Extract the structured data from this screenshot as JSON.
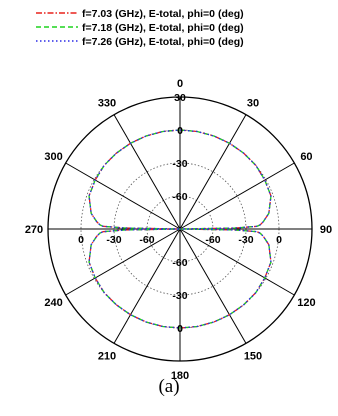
{
  "chart_data": {
    "type": "polar-line",
    "angle_unit": "deg",
    "angle_zero": "top",
    "angle_direction": "clockwise",
    "angle_ticks": [
      0,
      30,
      60,
      90,
      120,
      150,
      180,
      210,
      240,
      270,
      300,
      330
    ],
    "radial_ticks": [
      30,
      0,
      -30,
      -60,
      -90
    ],
    "radial_range": [
      -90,
      30
    ],
    "grid": true,
    "legend_position": "top",
    "series": [
      {
        "name": "f=7.03 (GHz), E-total, phi=0 (deg)",
        "color": "#e8221c",
        "dash": "dash-dot",
        "theta": [
          0,
          10,
          20,
          30,
          40,
          50,
          60,
          70,
          80,
          85,
          87,
          88,
          89,
          90,
          91,
          92,
          93,
          95,
          100,
          110,
          120,
          130,
          140,
          150,
          160,
          170,
          180,
          190,
          200,
          210,
          220,
          230,
          240,
          250,
          260,
          265,
          267,
          268,
          269,
          270,
          271,
          272,
          273,
          275,
          280,
          290,
          300,
          310,
          320,
          330,
          340,
          350,
          360
        ],
        "r": [
          0,
          0,
          0,
          0,
          0,
          0,
          -1,
          -2,
          -8,
          -14,
          -17,
          -20,
          -40,
          -90,
          -40,
          -20,
          -17,
          -14,
          -8,
          -2,
          -1,
          0,
          0,
          0,
          0,
          0,
          0,
          0,
          0,
          0,
          0,
          0,
          -1,
          -2,
          -8,
          -14,
          -17,
          -20,
          -40,
          -90,
          -40,
          -20,
          -17,
          -14,
          -8,
          -2,
          -1,
          0,
          0,
          0,
          0,
          0,
          0
        ]
      },
      {
        "name": "f=7.18 (GHz), E-total, phi=0 (deg)",
        "color": "#1fd41f",
        "dash": "dash",
        "theta": [
          0,
          10,
          20,
          30,
          40,
          50,
          60,
          70,
          80,
          85,
          87,
          88,
          89,
          90,
          91,
          92,
          93,
          95,
          100,
          110,
          120,
          130,
          140,
          150,
          160,
          170,
          180,
          190,
          200,
          210,
          220,
          230,
          240,
          250,
          260,
          265,
          267,
          268,
          269,
          270,
          271,
          272,
          273,
          275,
          280,
          290,
          300,
          310,
          320,
          330,
          340,
          350,
          360
        ],
        "r": [
          0,
          0,
          0,
          0,
          0,
          0,
          -1,
          -2,
          -8,
          -14,
          -17,
          -20,
          -40,
          -90,
          -40,
          -20,
          -17,
          -14,
          -8,
          -2,
          -1,
          0,
          0,
          0,
          0,
          0,
          0,
          0,
          0,
          0,
          0,
          0,
          -1,
          -2,
          -8,
          -14,
          -17,
          -20,
          -40,
          -90,
          -40,
          -20,
          -17,
          -14,
          -8,
          -2,
          -1,
          0,
          0,
          0,
          0,
          0,
          0
        ]
      },
      {
        "name": "f=7.26 (GHz), E-total, phi=0 (deg)",
        "color": "#2a2ae6",
        "dash": "dot",
        "theta": [
          0,
          10,
          20,
          30,
          40,
          50,
          60,
          70,
          80,
          85,
          87,
          88,
          89,
          90,
          91,
          92,
          93,
          95,
          100,
          110,
          120,
          130,
          140,
          150,
          160,
          170,
          180,
          190,
          200,
          210,
          220,
          230,
          240,
          250,
          260,
          265,
          267,
          268,
          269,
          270,
          271,
          272,
          273,
          275,
          280,
          290,
          300,
          310,
          320,
          330,
          340,
          350,
          360
        ],
        "r": [
          0,
          0,
          0,
          0,
          0,
          0,
          -1,
          -2,
          -8,
          -14,
          -17,
          -20,
          -40,
          -90,
          -40,
          -20,
          -17,
          -14,
          -8,
          -2,
          -1,
          0,
          0,
          0,
          0,
          0,
          0,
          0,
          0,
          0,
          0,
          0,
          -1,
          -2,
          -8,
          -14,
          -17,
          -20,
          -40,
          -90,
          -40,
          -20,
          -17,
          -14,
          -8,
          -2,
          -1,
          0,
          0,
          0,
          0,
          0,
          0
        ]
      }
    ]
  },
  "caption": "(a)"
}
